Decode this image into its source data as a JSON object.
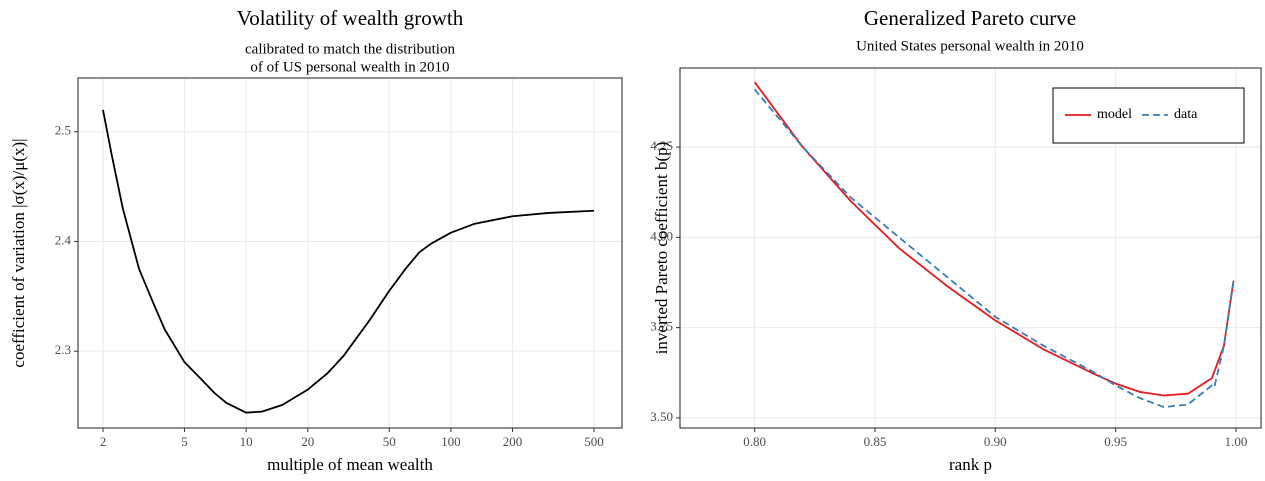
{
  "chart_data": [
    {
      "type": "line",
      "title": "Volatility of wealth growth",
      "subtitle": [
        "calibrated to match the distribution",
        "of of US personal wealth in 2010"
      ],
      "x_label": "multiple of mean wealth",
      "y_label": "coefficient of variation |σ(x)/μ(x)|",
      "xscale": "log",
      "grid": true,
      "xlim": [
        1.51,
        685
      ],
      "ylim": [
        2.23,
        2.549
      ],
      "xticks": [
        2,
        5,
        10,
        20,
        50,
        100,
        200,
        500
      ],
      "yticks": [
        2.3,
        2.4,
        2.5
      ],
      "series": [
        {
          "color": "#000000",
          "x": [
            2,
            2.2,
            2.5,
            3,
            3.5,
            4,
            5,
            6,
            7,
            8,
            10,
            12,
            15,
            20,
            25,
            30,
            40,
            50,
            60,
            70,
            80,
            100,
            130,
            200,
            300,
            500
          ],
          "values": [
            2.52,
            2.48,
            2.43,
            2.375,
            2.345,
            2.32,
            2.29,
            2.275,
            2.262,
            2.253,
            2.244,
            2.245,
            2.251,
            2.265,
            2.28,
            2.296,
            2.328,
            2.355,
            2.375,
            2.39,
            2.398,
            2.408,
            2.416,
            2.423,
            2.426,
            2.428
          ]
        }
      ]
    },
    {
      "type": "line",
      "title": "Generalized Pareto curve",
      "subtitle": [
        "United States personal wealth in 2010"
      ],
      "x_label": "rank p",
      "y_label": "inverted Pareto coefficient b(p)",
      "xscale": "linear",
      "grid": true,
      "legend": "top-right",
      "xlim": [
        0.769,
        1.0104
      ],
      "ylim": [
        3.472,
        4.469
      ],
      "xticks": [
        {
          "value": 0.8,
          "label": "0.80"
        },
        0.85,
        {
          "value": 0.9,
          "label": "0.90"
        },
        0.95,
        {
          "value": 1,
          "label": "1.00"
        }
      ],
      "yticks": [
        {
          "value": 3.5,
          "label": "3.50"
        },
        3.75,
        {
          "value": 4,
          "label": "4.00"
        },
        4.25
      ],
      "series": [
        {
          "name": "model",
          "color": "#e41a1c",
          "dash": "solid",
          "x": [
            0.8,
            0.82,
            0.84,
            0.86,
            0.88,
            0.9,
            0.92,
            0.94,
            0.95,
            0.96,
            0.97,
            0.98,
            0.99,
            0.995,
            0.999
          ],
          "values": [
            4.43,
            4.25,
            4.1,
            3.97,
            3.865,
            3.77,
            3.69,
            3.625,
            3.595,
            3.572,
            3.562,
            3.567,
            3.61,
            3.7,
            3.88
          ]
        },
        {
          "name": "data",
          "color": "#377eb8",
          "dash": "dashed",
          "x": [
            0.8,
            0.82,
            0.84,
            0.86,
            0.88,
            0.9,
            0.92,
            0.94,
            0.95,
            0.96,
            0.97,
            0.98,
            0.99,
            0.991,
            0.995,
            0.999
          ],
          "values": [
            4.41,
            4.25,
            4.11,
            4.0,
            3.89,
            3.78,
            3.7,
            3.63,
            3.59,
            3.555,
            3.53,
            3.537,
            3.59,
            3.585,
            3.7,
            3.88
          ]
        }
      ]
    }
  ]
}
